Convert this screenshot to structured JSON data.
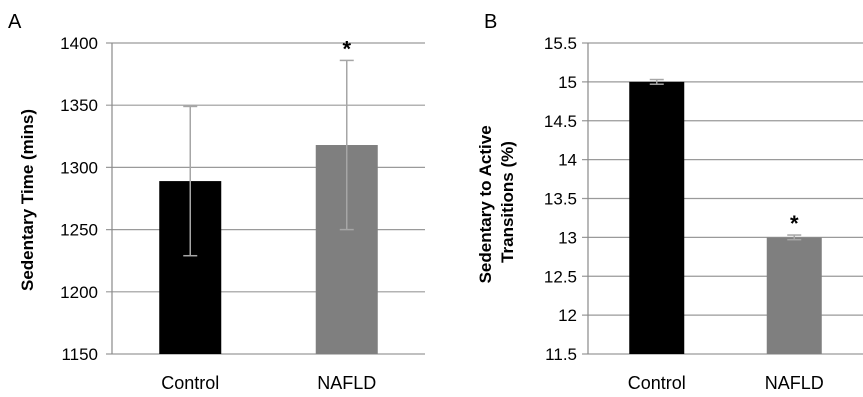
{
  "chart_data": [
    {
      "type": "bar",
      "panel": "A",
      "categories": [
        "Control",
        "NAFLD"
      ],
      "values": [
        1289,
        1318
      ],
      "error_low": [
        1229,
        1250
      ],
      "error_high": [
        1349,
        1386
      ],
      "significance": [
        "",
        "*"
      ],
      "ylabel": "Sedentary Time (mins)",
      "ylim": [
        1150,
        1400
      ],
      "yticks": [
        "1150",
        "1200",
        "1250",
        "1300",
        "1350",
        "1400"
      ],
      "grid": true,
      "colors": [
        "#000000",
        "#7f7f7f"
      ],
      "error_bar_color": "#a6a6a6"
    },
    {
      "type": "bar",
      "panel": "B",
      "categories": [
        "Control",
        "NAFLD"
      ],
      "values": [
        15.0,
        13.0
      ],
      "error_low": [
        14.97,
        12.97
      ],
      "error_high": [
        15.03,
        13.03
      ],
      "significance": [
        "",
        "*"
      ],
      "ylabel_lines": [
        "Sedentary to Active",
        "Transitions (%)"
      ],
      "ylim": [
        11.5,
        15.5
      ],
      "yticks": [
        "11.5",
        "12",
        "12.5",
        "13",
        "13.5",
        "14",
        "14.5",
        "15",
        "15.5"
      ],
      "grid": true,
      "colors": [
        "#000000",
        "#7f7f7f"
      ],
      "error_bar_color": "#a6a6a6"
    }
  ]
}
